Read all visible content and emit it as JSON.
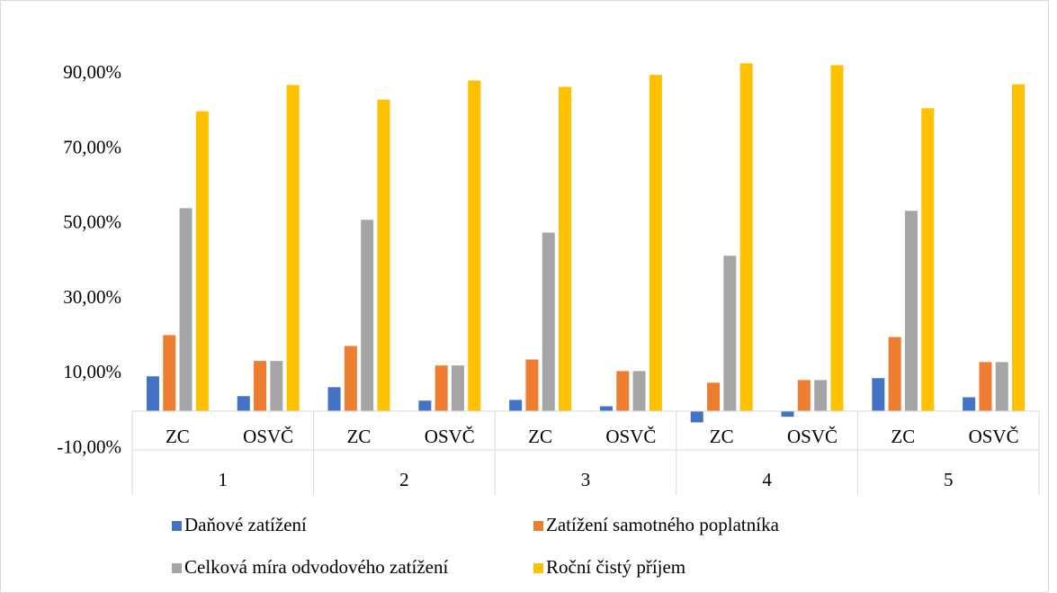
{
  "chart_data": {
    "type": "bar",
    "categories": [
      "ZC",
      "OSVČ",
      "ZC",
      "OSVČ",
      "ZC",
      "OSVČ",
      "ZC",
      "OSVČ",
      "ZC",
      "OSVČ"
    ],
    "groups": [
      "1",
      "2",
      "3",
      "4",
      "5"
    ],
    "series": [
      {
        "name": "Daňové zatížení",
        "color": "#4472c4",
        "values": [
          9.3,
          4.0,
          6.4,
          2.8,
          3.0,
          1.3,
          -3.0,
          -1.5,
          8.8,
          3.7
        ]
      },
      {
        "name": "Zatížení samotného poplatníka",
        "color": "#ed7d31",
        "values": [
          20.3,
          13.4,
          17.4,
          12.2,
          13.8,
          10.7,
          7.6,
          8.3,
          19.8,
          13.1
        ]
      },
      {
        "name": "Celková míra odvodového zatížení",
        "color": "#a5a5a5",
        "values": [
          54.2,
          13.4,
          51.1,
          12.2,
          47.7,
          10.7,
          41.5,
          8.3,
          53.5,
          13.1
        ]
      },
      {
        "name": "Roční čistý příjem",
        "color": "#ffc000",
        "values": [
          80.1,
          87.1,
          83.2,
          88.3,
          86.6,
          89.8,
          92.9,
          92.4,
          80.9,
          87.3
        ]
      }
    ],
    "ylim": [
      -10,
      100
    ],
    "yticks": [
      {
        "value": -10,
        "label": "-10,00%"
      },
      {
        "value": 10,
        "label": "10,00%"
      },
      {
        "value": 30,
        "label": "30,00%"
      },
      {
        "value": 50,
        "label": "50,00%"
      },
      {
        "value": 70,
        "label": "70,00%"
      },
      {
        "value": 90,
        "label": "90,00%"
      }
    ],
    "grid": false,
    "legend": "bottom"
  }
}
